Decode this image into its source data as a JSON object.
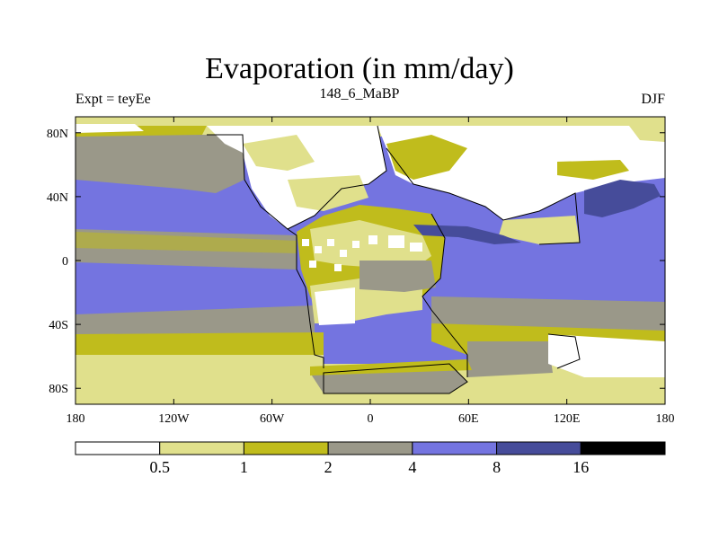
{
  "header": {
    "title": "Evaporation (in mm/day)",
    "left": "Expt = teyEe",
    "center": "148_6_MaBP",
    "right": "DJF"
  },
  "map": {
    "lon_range": [
      -180,
      180
    ],
    "lat_range": [
      -90,
      90
    ],
    "lon_ticks": [
      {
        "value": -180,
        "label": "180"
      },
      {
        "value": -120,
        "label": "120W"
      },
      {
        "value": -60,
        "label": "60W"
      },
      {
        "value": 0,
        "label": "0"
      },
      {
        "value": 60,
        "label": "60E"
      },
      {
        "value": 120,
        "label": "120E"
      },
      {
        "value": 180,
        "label": "180"
      }
    ],
    "lat_ticks": [
      {
        "value": 80,
        "label": "80N"
      },
      {
        "value": 40,
        "label": "40N"
      },
      {
        "value": 0,
        "label": "0"
      },
      {
        "value": -40,
        "label": "40S"
      },
      {
        "value": -80,
        "label": "80S"
      }
    ]
  },
  "colorbar": {
    "colors": [
      "#ffffff",
      "#e0e08c",
      "#c0bc1c",
      "#9a9889",
      "#7474e0",
      "#464c9a",
      "#000000"
    ],
    "labels": [
      "0.5",
      "1",
      "2",
      "4",
      "8",
      "16"
    ]
  }
}
